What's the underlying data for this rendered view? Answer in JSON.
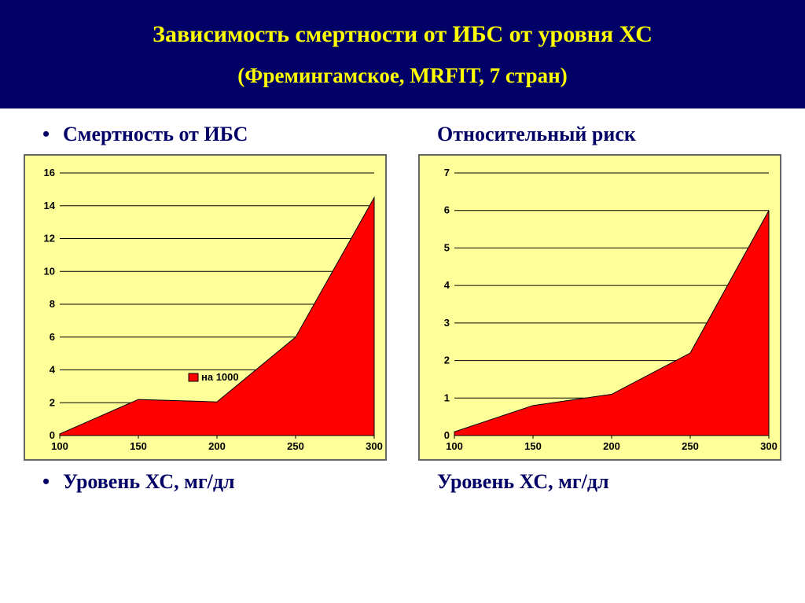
{
  "header": {
    "title": "Зависимость смертности от ИБС от уровня ХС",
    "subtitle": "(Фремингамское, MRFIT, 7 стран)",
    "bg_color": "#000066",
    "text_color": "#ffff00",
    "title_fontsize": 30,
    "subtitle_fontsize": 27
  },
  "charts": {
    "left": {
      "type": "area",
      "heading": "Смертность от ИБС",
      "x_label": "Уровень ХС, мг/дл",
      "x_values": [
        100,
        150,
        200,
        250,
        300
      ],
      "y_values": [
        0.1,
        2.2,
        2.05,
        6.0,
        14.5
      ],
      "x_ticks": [
        100,
        150,
        200,
        250,
        300
      ],
      "y_ticks": [
        0,
        2,
        4,
        6,
        8,
        10,
        12,
        14,
        16
      ],
      "xlim": [
        100,
        300
      ],
      "ylim": [
        0,
        16
      ],
      "fill_color": "#ff0000",
      "plot_bg": "#ffff99",
      "outer_border": "#666666",
      "grid_color": "#000000",
      "tick_fontsize": 13,
      "legend": {
        "label": "на 1000",
        "swatch_color": "#ff0000"
      }
    },
    "right": {
      "type": "area",
      "heading": "Относительный риск",
      "x_label": "Уровень ХС, мг/дл",
      "x_values": [
        100,
        150,
        200,
        250,
        300
      ],
      "y_values": [
        0.1,
        0.8,
        1.1,
        2.2,
        6.0
      ],
      "x_ticks": [
        100,
        150,
        200,
        250,
        300
      ],
      "y_ticks": [
        0,
        1,
        2,
        3,
        4,
        5,
        6,
        7
      ],
      "xlim": [
        100,
        300
      ],
      "ylim": [
        0,
        7
      ],
      "fill_color": "#ff0000",
      "plot_bg": "#ffff99",
      "outer_border": "#666666",
      "grid_color": "#000000",
      "tick_fontsize": 13
    }
  },
  "colors": {
    "page_bg": "#ffffff",
    "text_dark": "#000066"
  }
}
